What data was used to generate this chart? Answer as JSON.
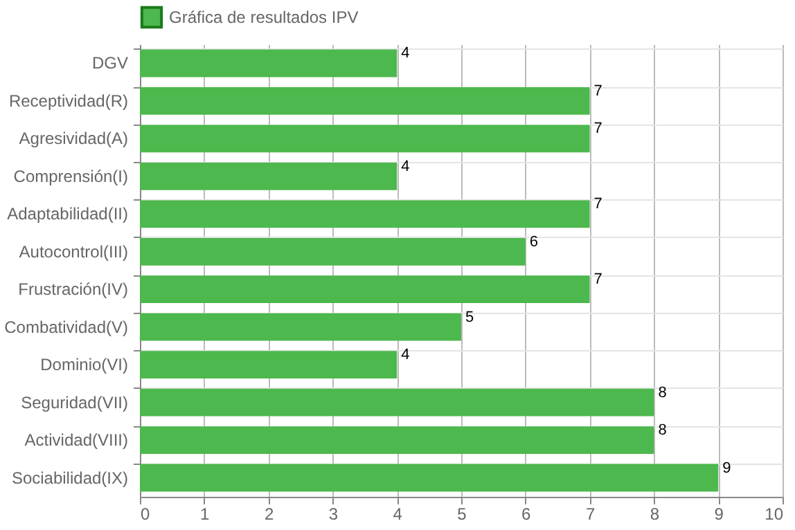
{
  "chart_data": {
    "type": "bar",
    "orientation": "horizontal",
    "categories": [
      "DGV",
      "Receptividad(R)",
      "Agresividad(A)",
      "Comprensión(I)",
      "Adaptabilidad(II)",
      "Autocontrol(III)",
      "Frustración(IV)",
      "Combatividad(V)",
      "Dominio(VI)",
      "Seguridad(VII)",
      "Actividad(VIII)",
      "Sociabilidad(IX)"
    ],
    "series": [
      {
        "name": "Gráfica de resultados IPV",
        "color": "#4db84d",
        "values": [
          4,
          7,
          7,
          4,
          7,
          6,
          7,
          5,
          4,
          8,
          8,
          9
        ]
      }
    ],
    "xlim": [
      0,
      10
    ],
    "xticks": [
      0,
      1,
      2,
      3,
      4,
      5,
      6,
      7,
      8,
      9,
      10
    ],
    "grid": true,
    "legend": "top",
    "data_labels": true
  }
}
